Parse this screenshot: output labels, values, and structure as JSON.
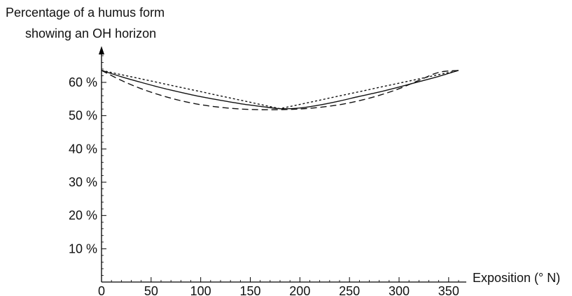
{
  "chart_data": {
    "type": "line",
    "ylabel_line1": "Percentage of a humus form",
    "ylabel_line2": "showing an OH horizon",
    "xlabel": "Exposition (° N)",
    "xlim": [
      0,
      360
    ],
    "ylim": [
      0,
      70
    ],
    "x_ticks": [
      0,
      50,
      100,
      150,
      200,
      250,
      300,
      350
    ],
    "x_tick_labels": [
      "0",
      "50",
      "100",
      "150",
      "200",
      "250",
      "300",
      "350"
    ],
    "y_ticks": [
      10,
      20,
      30,
      40,
      50,
      60
    ],
    "y_tick_labels": [
      "10 %",
      "20 %",
      "30 %",
      "40 %",
      "50 %",
      "60 %"
    ],
    "grid": false,
    "series": [
      {
        "style": "solid",
        "x": [
          0,
          20,
          40,
          60,
          80,
          100,
          120,
          140,
          160,
          180,
          200,
          220,
          240,
          260,
          280,
          300,
          320,
          340,
          360
        ],
        "y": [
          63.6,
          61.7,
          60.0,
          58.4,
          57.0,
          55.7,
          54.6,
          53.6,
          52.8,
          52.1,
          52.3,
          53.2,
          54.4,
          55.8,
          57.1,
          58.6,
          60.2,
          61.8,
          63.6
        ]
      },
      {
        "style": "dashed",
        "x": [
          0,
          20,
          40,
          60,
          80,
          100,
          120,
          140,
          160,
          180,
          200,
          220,
          240,
          260,
          280,
          300,
          320,
          340,
          360
        ],
        "y": [
          63.6,
          60.6,
          58.1,
          56.1,
          54.5,
          53.3,
          52.5,
          52.0,
          51.8,
          51.8,
          52.0,
          52.5,
          53.3,
          54.5,
          56.1,
          58.1,
          60.6,
          63.0,
          63.6
        ]
      },
      {
        "style": "dotted",
        "x": [
          0,
          180,
          360
        ],
        "y": [
          63.6,
          52.1,
          63.6
        ]
      }
    ]
  }
}
